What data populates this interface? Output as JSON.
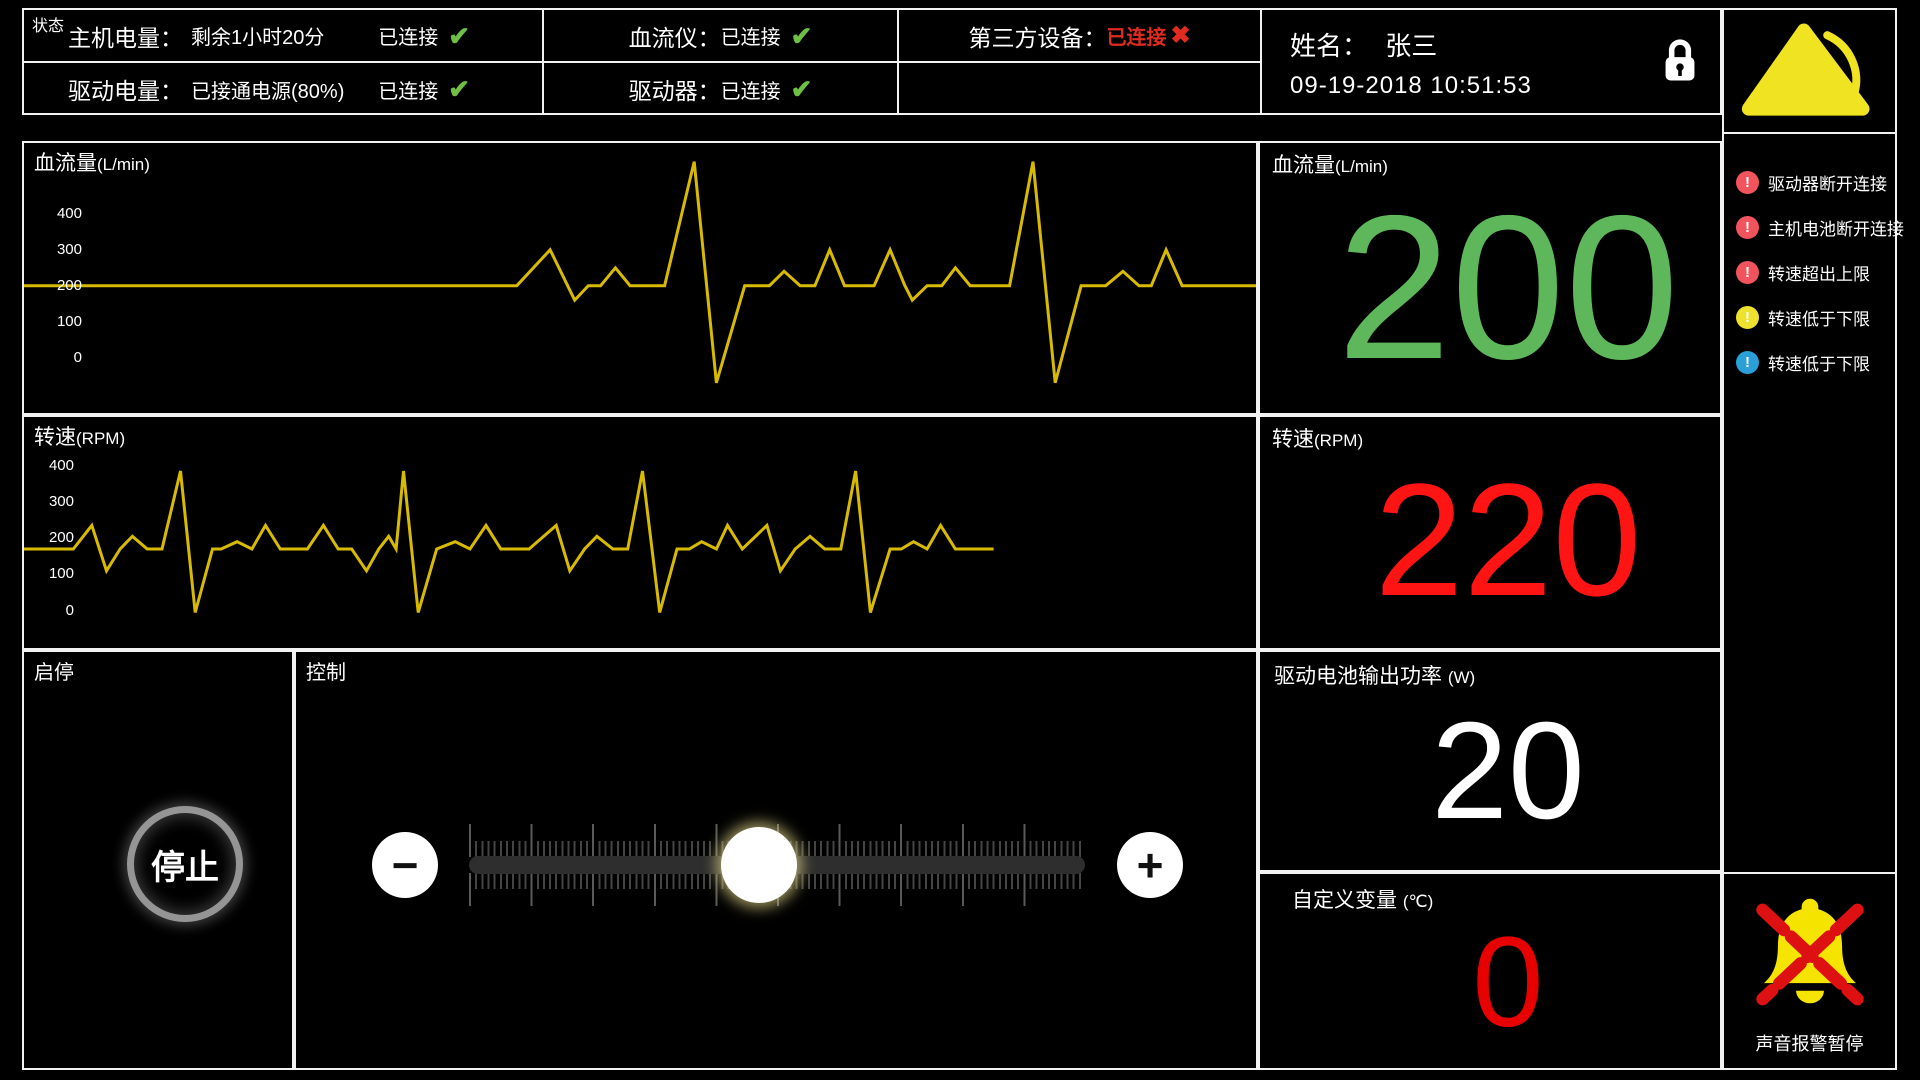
{
  "colors": {
    "border": "#f2f2f2",
    "waveform": "#d8ba00",
    "ok_green": "#6fbf44",
    "flow_green": "#5eb75a",
    "alert_red": "#e02b20",
    "rpm_red": "#ff1414",
    "custom_red": "#e60000",
    "alarm_pink": "#f2545e",
    "alarm_yellow": "#efe22e",
    "alarm_blue": "#2b9fd8",
    "icon_yellow": "#f0e321"
  },
  "status_bar": {
    "corner_label": "状态",
    "host_battery": {
      "label": "主机电量：",
      "value": "剩余1小时20分",
      "conn": "已连接",
      "check": "✔"
    },
    "drive_battery": {
      "label": "驱动电量：",
      "value": "已接通电源(80%)",
      "conn": "已连接",
      "check": "✔"
    },
    "flow_meter": {
      "label": "血流仪：",
      "conn": "已连接",
      "check": "✔"
    },
    "driver": {
      "label": "驱动器：",
      "conn": "已连接",
      "check": "✔"
    },
    "third_party": {
      "label": "第三方设备：",
      "conn": "已连接",
      "cross": "✖"
    },
    "patient": {
      "name_label": "姓名：",
      "name": "张三",
      "datetime": "09-19-2018 10:51:53"
    }
  },
  "displays": {
    "flow": {
      "title": "血流量",
      "unit": "(L/min)",
      "value": "200"
    },
    "rpm": {
      "title": "转速",
      "unit": "(RPM)",
      "value": "220"
    },
    "power": {
      "title": "驱动电池输出功率",
      "unit": "(W)",
      "value": "20"
    },
    "custom": {
      "title": "自定义变量",
      "unit": "(℃)",
      "value": "0"
    }
  },
  "controls": {
    "start_stop_label": "启停",
    "stop_button_label": "停止",
    "control_label": "控制",
    "minus_label": "−",
    "plus_label": "+",
    "slider_position_pct": 47
  },
  "sidebar": {
    "alarms": [
      {
        "text": "驱动器断开连接",
        "severity": "red",
        "mark": "!"
      },
      {
        "text": "主机电池断开连接",
        "severity": "red",
        "mark": "!"
      },
      {
        "text": "转速超出上限",
        "severity": "red",
        "mark": "!"
      },
      {
        "text": "转速低于下限",
        "severity": "yellow",
        "mark": "!"
      },
      {
        "text": "转速低于下限",
        "severity": "blue",
        "mark": "!"
      }
    ],
    "mute_label": "声音报警暂停"
  },
  "chart_data": [
    {
      "type": "line",
      "title": "血流量",
      "unit": "(L/min)",
      "ylabel": "L/min",
      "ticks": [
        400,
        300,
        200,
        100,
        0
      ],
      "ymin": -154,
      "ymax": 597,
      "baseline": 200,
      "color": "#d8ba00",
      "grid": false,
      "points": [
        [
          0,
          200
        ],
        [
          0.4,
          200
        ],
        [
          0.427,
          300
        ],
        [
          0.447,
          160
        ],
        [
          0.458,
          200
        ],
        [
          0.468,
          200
        ],
        [
          0.48,
          250
        ],
        [
          0.492,
          200
        ],
        [
          0.52,
          200
        ],
        [
          0.544,
          545
        ],
        [
          0.562,
          -70
        ],
        [
          0.585,
          200
        ],
        [
          0.605,
          200
        ],
        [
          0.617,
          240
        ],
        [
          0.63,
          200
        ],
        [
          0.642,
          200
        ],
        [
          0.654,
          300
        ],
        [
          0.666,
          200
        ],
        [
          0.69,
          200
        ],
        [
          0.703,
          300
        ],
        [
          0.715,
          200
        ],
        [
          0.721,
          160
        ],
        [
          0.733,
          200
        ],
        [
          0.745,
          200
        ],
        [
          0.756,
          250
        ],
        [
          0.768,
          200
        ],
        [
          0.8,
          200
        ],
        [
          0.819,
          545
        ],
        [
          0.837,
          -70
        ],
        [
          0.858,
          200
        ],
        [
          0.878,
          200
        ],
        [
          0.892,
          240
        ],
        [
          0.905,
          200
        ],
        [
          0.915,
          200
        ],
        [
          0.927,
          300
        ],
        [
          0.94,
          200
        ],
        [
          1,
          200
        ]
      ]
    },
    {
      "type": "line",
      "title": "转速",
      "unit": "(RPM)",
      "ylabel": "RPM",
      "ticks": [
        400,
        300,
        200,
        100,
        0
      ],
      "ymin": -103,
      "ymax": 534,
      "baseline": 170,
      "color": "#d8ba00",
      "grid": false,
      "points": [
        [
          0,
          170
        ],
        [
          0.04,
          170
        ],
        [
          0.055,
          235
        ],
        [
          0.067,
          110
        ],
        [
          0.078,
          170
        ],
        [
          0.088,
          205
        ],
        [
          0.1,
          170
        ],
        [
          0.112,
          170
        ],
        [
          0.127,
          385
        ],
        [
          0.139,
          -5
        ],
        [
          0.153,
          170
        ],
        [
          0.16,
          170
        ],
        [
          0.173,
          190
        ],
        [
          0.185,
          170
        ],
        [
          0.196,
          235
        ],
        [
          0.208,
          170
        ],
        [
          0.23,
          170
        ],
        [
          0.243,
          235
        ],
        [
          0.255,
          170
        ],
        [
          0.266,
          170
        ],
        [
          0.278,
          110
        ],
        [
          0.288,
          170
        ],
        [
          0.296,
          205
        ],
        [
          0.302,
          170
        ],
        [
          0.308,
          385
        ],
        [
          0.32,
          -5
        ],
        [
          0.335,
          170
        ],
        [
          0.35,
          190
        ],
        [
          0.362,
          170
        ],
        [
          0.375,
          235
        ],
        [
          0.387,
          170
        ],
        [
          0.41,
          170
        ],
        [
          0.432,
          235
        ],
        [
          0.443,
          110
        ],
        [
          0.455,
          170
        ],
        [
          0.465,
          205
        ],
        [
          0.478,
          170
        ],
        [
          0.49,
          170
        ],
        [
          0.502,
          385
        ],
        [
          0.516,
          -5
        ],
        [
          0.53,
          170
        ],
        [
          0.54,
          170
        ],
        [
          0.55,
          190
        ],
        [
          0.562,
          170
        ],
        [
          0.571,
          235
        ],
        [
          0.583,
          170
        ],
        [
          0.603,
          235
        ],
        [
          0.614,
          110
        ],
        [
          0.626,
          170
        ],
        [
          0.638,
          205
        ],
        [
          0.65,
          170
        ],
        [
          0.663,
          170
        ],
        [
          0.675,
          385
        ],
        [
          0.687,
          -5
        ],
        [
          0.703,
          170
        ],
        [
          0.712,
          170
        ],
        [
          0.722,
          190
        ],
        [
          0.733,
          170
        ],
        [
          0.744,
          235
        ],
        [
          0.756,
          170
        ],
        [
          0.787,
          170
        ]
      ]
    }
  ]
}
